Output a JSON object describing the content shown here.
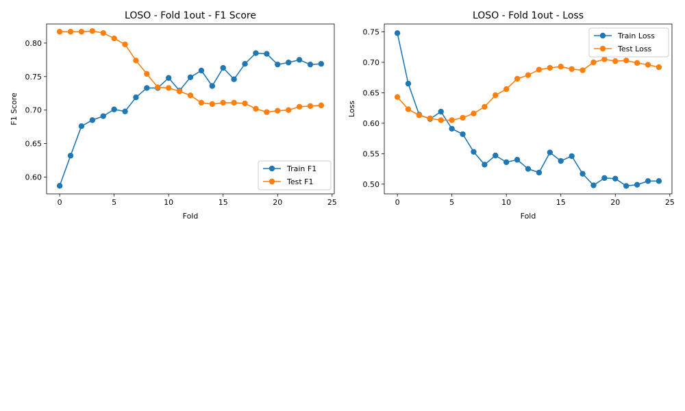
{
  "chart_data": [
    {
      "type": "line",
      "title": "LOSO - Fold 1out - F1 Score",
      "xlabel": "Fold",
      "ylabel": "F1 Score",
      "xlim": [
        -1.2,
        25.2
      ],
      "ylim": [
        0.575,
        0.8285
      ],
      "xticks": [
        0,
        5,
        10,
        15,
        20,
        25
      ],
      "yticks": [
        0.6,
        0.65,
        0.7,
        0.75,
        0.8
      ],
      "ytick_labels": [
        "0.60",
        "0.65",
        "0.70",
        "0.75",
        "0.80"
      ],
      "legend_position": "lower-right",
      "x": [
        0,
        1,
        2,
        3,
        4,
        5,
        6,
        7,
        8,
        9,
        10,
        11,
        12,
        13,
        14,
        15,
        16,
        17,
        18,
        19,
        20,
        21,
        22,
        23,
        24
      ],
      "series": [
        {
          "name": "Train F1",
          "color": "#1f77b4",
          "values": [
            0.587,
            0.632,
            0.676,
            0.685,
            0.691,
            0.701,
            0.698,
            0.719,
            0.733,
            0.733,
            0.748,
            0.729,
            0.749,
            0.759,
            0.736,
            0.763,
            0.746,
            0.769,
            0.785,
            0.784,
            0.768,
            0.771,
            0.775,
            0.768,
            0.769
          ]
        },
        {
          "name": "Test F1",
          "color": "#ff7f0e",
          "values": [
            0.817,
            0.817,
            0.817,
            0.818,
            0.815,
            0.807,
            0.798,
            0.774,
            0.754,
            0.734,
            0.733,
            0.728,
            0.722,
            0.711,
            0.709,
            0.711,
            0.711,
            0.71,
            0.702,
            0.697,
            0.699,
            0.7,
            0.705,
            0.706,
            0.707
          ]
        }
      ]
    },
    {
      "type": "line",
      "title": "LOSO - Fold 1out - Loss",
      "xlabel": "Fold",
      "ylabel": "Loss",
      "xlim": [
        -1.2,
        25.2
      ],
      "ylim": [
        0.484,
        0.763
      ],
      "xticks": [
        0,
        5,
        10,
        15,
        20,
        25
      ],
      "yticks": [
        0.5,
        0.55,
        0.6,
        0.65,
        0.7,
        0.75
      ],
      "ytick_labels": [
        "0.50",
        "0.55",
        "0.60",
        "0.65",
        "0.70",
        "0.75"
      ],
      "legend_position": "top-right",
      "x": [
        0,
        1,
        2,
        3,
        4,
        5,
        6,
        7,
        8,
        9,
        10,
        11,
        12,
        13,
        14,
        15,
        16,
        17,
        18,
        19,
        20,
        21,
        22,
        23,
        24
      ],
      "series": [
        {
          "name": "Train Loss",
          "color": "#1f77b4",
          "values": [
            0.748,
            0.665,
            0.614,
            0.607,
            0.619,
            0.591,
            0.582,
            0.553,
            0.532,
            0.547,
            0.536,
            0.54,
            0.525,
            0.519,
            0.552,
            0.538,
            0.546,
            0.517,
            0.498,
            0.51,
            0.509,
            0.497,
            0.499,
            0.505,
            0.505
          ]
        },
        {
          "name": "Test Loss",
          "color": "#ff7f0e",
          "values": [
            0.643,
            0.623,
            0.613,
            0.608,
            0.605,
            0.605,
            0.609,
            0.616,
            0.627,
            0.646,
            0.656,
            0.673,
            0.679,
            0.688,
            0.691,
            0.693,
            0.689,
            0.687,
            0.7,
            0.705,
            0.702,
            0.703,
            0.699,
            0.696,
            0.692
          ]
        }
      ]
    }
  ]
}
